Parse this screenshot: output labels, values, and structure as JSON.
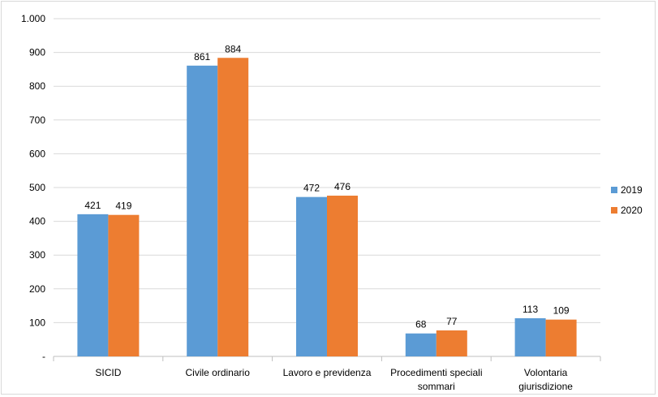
{
  "chart_data": {
    "type": "bar",
    "categories": [
      [
        "SICID"
      ],
      [
        "Civile ordinario"
      ],
      [
        "Lavoro e previdenza"
      ],
      [
        "Procedimenti speciali",
        "sommari"
      ],
      [
        "Volontaria",
        "giurisdizione"
      ]
    ],
    "series": [
      {
        "name": "2019",
        "color": "#5b9bd5",
        "values": [
          421,
          861,
          472,
          68,
          113
        ]
      },
      {
        "name": "2020",
        "color": "#ed7d31",
        "values": [
          419,
          884,
          476,
          77,
          109
        ]
      }
    ],
    "ylim": [
      0,
      1000
    ],
    "yticks": [
      0,
      100,
      200,
      300,
      400,
      500,
      600,
      700,
      800,
      900,
      1000
    ],
    "ytick_labels": [
      "-",
      "100",
      "200",
      "300",
      "400",
      "500",
      "600",
      "700",
      "800",
      "900",
      "1.000"
    ],
    "grid": true,
    "legend": "right",
    "title": "",
    "xlabel": "",
    "ylabel": ""
  }
}
